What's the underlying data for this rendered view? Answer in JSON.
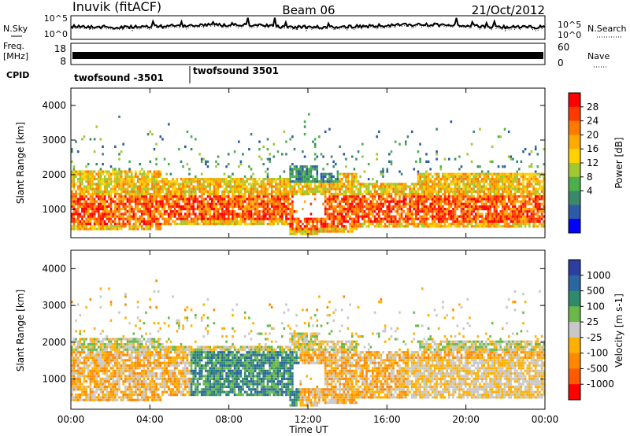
{
  "header": {
    "title_left": "Inuvik (fitACF)",
    "title_center": "Beam 06",
    "title_right": "21/Oct/2012"
  },
  "noise_panel": {
    "left_label": "N.Sky",
    "left_ticks": [
      "10^5",
      "10^0"
    ],
    "right_label": "N.Search",
    "right_ticks": [
      "10^5",
      "10^0"
    ]
  },
  "freq_panel": {
    "left_label_1": "Freq.",
    "left_label_2": "[MHz]",
    "left_ticks": [
      "18",
      "8"
    ],
    "right_label": "Nave",
    "right_ticks": [
      "60",
      "0"
    ]
  },
  "cpid_panel": {
    "label": "CPID",
    "programs": [
      "twofsound -3501",
      "twofsound 3501"
    ]
  },
  "x_axis": {
    "title": "Time UT",
    "ticks": [
      "00:00",
      "04:00",
      "08:00",
      "12:00",
      "16:00",
      "20:00",
      "00:00"
    ]
  },
  "power_panel": {
    "ylabel": "Slant Range [km]",
    "yticks": [
      "4000",
      "3000",
      "2000",
      "1000"
    ],
    "colorbar_title": "Power [dB]",
    "colorbar_labels": [
      "28",
      "24",
      "20",
      "16",
      "12",
      "8",
      "4"
    ],
    "colorbar_colors": [
      "#ff0000",
      "#ff3a00",
      "#ff7a00",
      "#ffaa00",
      "#ffd200",
      "#a0c830",
      "#4bb04b",
      "#3a8a6a",
      "#2d5aa8",
      "#0000ff"
    ]
  },
  "velocity_panel": {
    "ylabel": "Slant Range [km]",
    "yticks": [
      "4000",
      "3000",
      "2000",
      "1000"
    ],
    "colorbar_title": "Velocity [m s-1]",
    "colorbar_labels": [
      "1000",
      "500",
      "100",
      "25",
      "-25",
      "-100",
      "-500",
      "-1000"
    ],
    "colorbar_colors": [
      "#2c3fa0",
      "#2a67a0",
      "#2e8a6a",
      "#6ab84a",
      "#c8c8c8",
      "#ffb000",
      "#ff8800",
      "#ff5a00",
      "#ff0000"
    ]
  },
  "chart_data": {
    "type": "heatmap",
    "title": "Inuvik (fitACF)  Beam 06  21/Oct/2012",
    "xlabel": "Time UT",
    "ylabel": "Slant Range [km]",
    "xlim": [
      "00:00",
      "24:00"
    ],
    "ylim": [
      180,
      4500
    ],
    "series": [
      {
        "name": "Power [dB]",
        "clim": [
          0,
          30
        ]
      },
      {
        "name": "Velocity [m s-1]",
        "clim": [
          -1000,
          1000
        ]
      }
    ]
  }
}
